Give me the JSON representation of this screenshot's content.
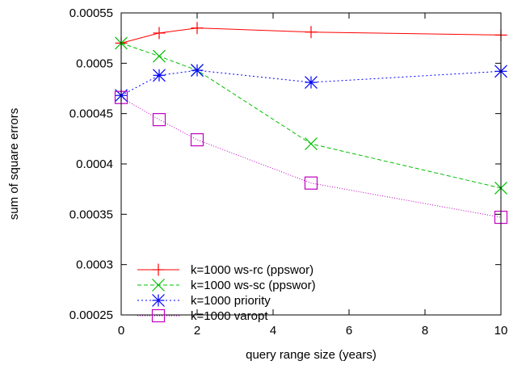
{
  "chart_data": {
    "type": "line",
    "title": "",
    "xlabel": "query range size (years)",
    "ylabel": "sum of square errors",
    "xlim": [
      0,
      10
    ],
    "ylim": [
      0.00025,
      0.00055
    ],
    "x_ticks": [
      0,
      2,
      4,
      6,
      8,
      10
    ],
    "x_tick_labels": [
      "0",
      "2",
      "4",
      "6",
      "8",
      "10"
    ],
    "y_ticks": [
      0.00025,
      0.0003,
      0.00035,
      0.0004,
      0.00045,
      0.0005,
      0.00055
    ],
    "y_tick_labels": [
      "0.00025",
      "0.0003",
      "0.00035",
      "0.0004",
      "0.00045",
      "0.0005",
      "0.00055"
    ],
    "grid": false,
    "legend_position": "bottom-left",
    "x": [
      0,
      1,
      2,
      5,
      10
    ],
    "series": [
      {
        "name": "k=1000 ws-rc (ppswor)",
        "values": [
          0.00052,
          0.00053,
          0.000535,
          0.000531,
          0.000528
        ],
        "color": "#ff0000",
        "marker": "plus",
        "dash": "solid"
      },
      {
        "name": "k=1000 ws-sc (ppswor)",
        "values": [
          0.00052,
          0.000507,
          0.000493,
          0.00042,
          0.000376
        ],
        "color": "#00c000",
        "marker": "x",
        "dash": "dashed"
      },
      {
        "name": "k=1000 priority",
        "values": [
          0.000468,
          0.000488,
          0.000493,
          0.000481,
          0.000492
        ],
        "color": "#0000ff",
        "marker": "star",
        "dash": "dotted"
      },
      {
        "name": "k=1000 varopt",
        "values": [
          0.000466,
          0.000444,
          0.000424,
          0.000381,
          0.000347
        ],
        "color": "#c000c0",
        "marker": "square",
        "dash": "fine-dotted"
      }
    ]
  }
}
